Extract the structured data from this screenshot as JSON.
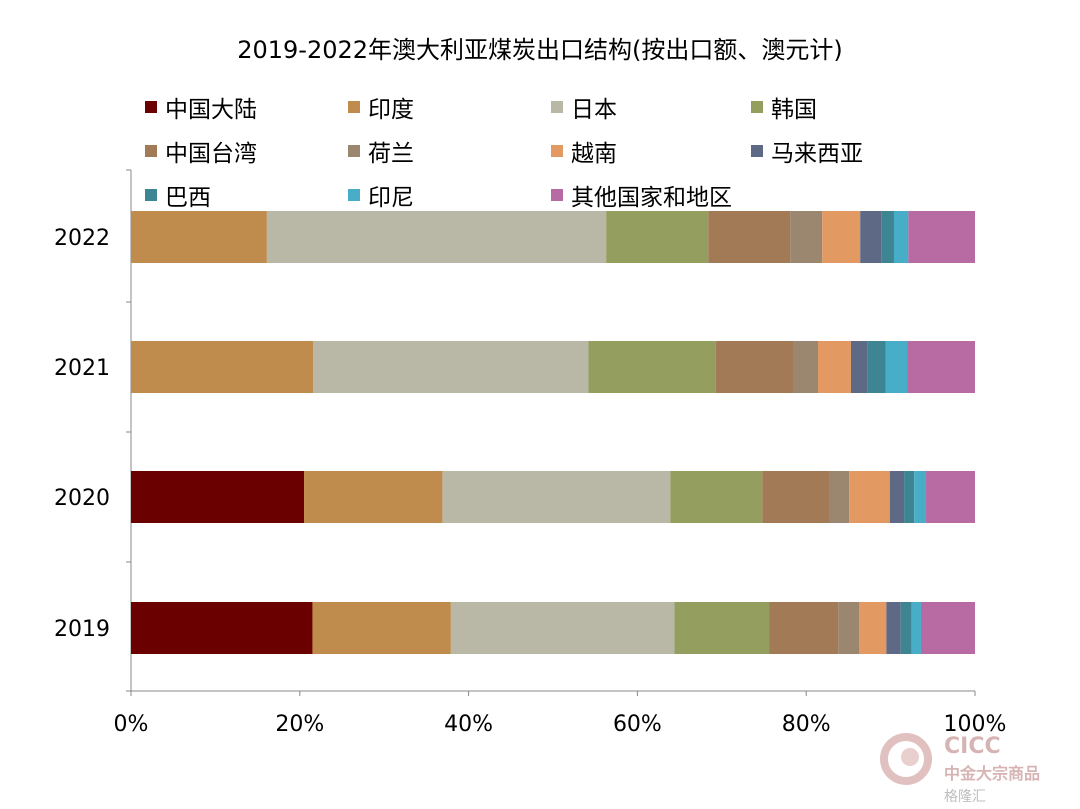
{
  "chart_data": {
    "type": "bar",
    "orientation": "horizontal",
    "stacked": true,
    "title": "2019-2022年澳大利亚煤炭出口结构(按出口额、澳元计)",
    "xlabel": "",
    "ylabel": "",
    "xlim": [
      0,
      100
    ],
    "x_ticks": [
      "0%",
      "20%",
      "40%",
      "60%",
      "80%",
      "100%"
    ],
    "categories": [
      "2022",
      "2021",
      "2020",
      "2019"
    ],
    "series": [
      {
        "name": "中国大陆",
        "color": "#6b0000",
        "values": [
          0,
          0,
          20.5,
          21.5
        ]
      },
      {
        "name": "印度",
        "color": "#c08c4e",
        "values": [
          16.1,
          21.6,
          16.4,
          16.4
        ]
      },
      {
        "name": "日本",
        "color": "#b9b8a6",
        "values": [
          40.2,
          32.6,
          27.0,
          26.5
        ]
      },
      {
        "name": "韩国",
        "color": "#949e5e",
        "values": [
          12.1,
          15.1,
          10.9,
          11.2
        ]
      },
      {
        "name": "中国台湾",
        "color": "#a37a56",
        "values": [
          9.7,
          9.2,
          7.9,
          8.2
        ]
      },
      {
        "name": "荷兰",
        "color": "#9b8670",
        "values": [
          3.8,
          2.9,
          2.4,
          2.5
        ]
      },
      {
        "name": "越南",
        "color": "#e39a62",
        "values": [
          4.5,
          3.9,
          4.8,
          3.2
        ]
      },
      {
        "name": "马来西亚",
        "color": "#5e6a85",
        "values": [
          2.5,
          2.0,
          1.7,
          1.7
        ]
      },
      {
        "name": "巴西",
        "color": "#3d8592",
        "values": [
          1.5,
          2.1,
          1.2,
          1.3
        ]
      },
      {
        "name": "印尼",
        "color": "#48aec8",
        "values": [
          1.7,
          2.6,
          1.4,
          1.1
        ]
      },
      {
        "name": "其他国家和地区",
        "color": "#b86aa3",
        "values": [
          7.9,
          8.0,
          5.8,
          6.4
        ]
      }
    ]
  },
  "watermark": {
    "brand": "CICC",
    "subtitle": "中金大宗商品",
    "source": "格隆汇"
  }
}
